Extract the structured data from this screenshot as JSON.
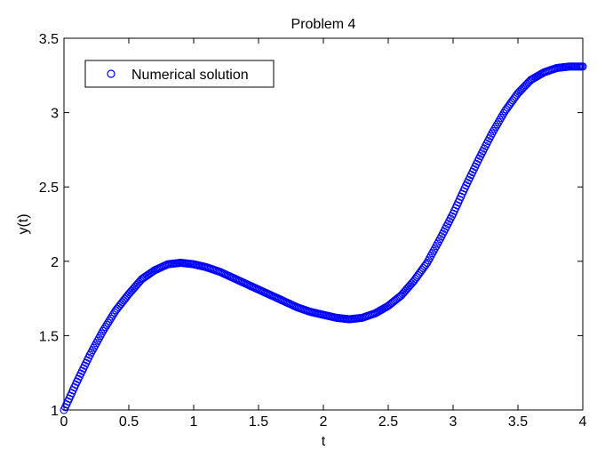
{
  "chart_data": {
    "type": "scatter",
    "title": "Problem 4",
    "xlabel": "t",
    "ylabel": "y(t)",
    "xlim": [
      0,
      4
    ],
    "ylim": [
      1,
      3.5
    ],
    "xticks": [
      0,
      0.5,
      1,
      1.5,
      2,
      2.5,
      3,
      3.5,
      4
    ],
    "xtick_labels": [
      "0",
      "0.5",
      "1",
      "1.5",
      "2",
      "2.5",
      "3",
      "3.5",
      "4"
    ],
    "yticks": [
      1,
      1.5,
      2,
      2.5,
      3,
      3.5
    ],
    "ytick_labels": [
      "1",
      "1.5",
      "2",
      "2.5",
      "3",
      "3.5"
    ],
    "grid": false,
    "legend_position": "top-left",
    "marker": "open-circle",
    "series_color": "#0000ff",
    "series": [
      {
        "name": "Numerical solution",
        "x": [
          0,
          0.1,
          0.2,
          0.3,
          0.4,
          0.5,
          0.6,
          0.7,
          0.8,
          0.9,
          1.0,
          1.1,
          1.2,
          1.3,
          1.4,
          1.5,
          1.6,
          1.7,
          1.8,
          1.9,
          2.0,
          2.1,
          2.2,
          2.3,
          2.4,
          2.5,
          2.6,
          2.7,
          2.8,
          2.9,
          3.0,
          3.1,
          3.2,
          3.3,
          3.4,
          3.5,
          3.6,
          3.7,
          3.8,
          3.9,
          4.0
        ],
        "y": [
          1.0,
          1.19,
          1.37,
          1.53,
          1.67,
          1.78,
          1.88,
          1.94,
          1.98,
          1.99,
          1.98,
          1.96,
          1.93,
          1.89,
          1.85,
          1.81,
          1.77,
          1.73,
          1.69,
          1.66,
          1.64,
          1.62,
          1.61,
          1.62,
          1.65,
          1.7,
          1.77,
          1.87,
          1.99,
          2.15,
          2.32,
          2.51,
          2.69,
          2.86,
          3.01,
          3.13,
          3.22,
          3.27,
          3.3,
          3.31,
          3.31
        ]
      }
    ]
  }
}
